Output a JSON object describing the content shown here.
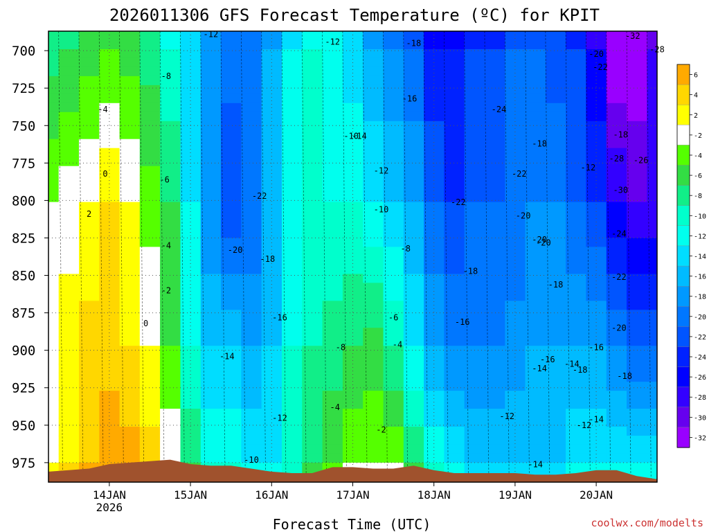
{
  "title": "2026011306 GFS Forecast Temperature (ºC) for KPIT",
  "credit": "coolwx.com/modelts",
  "chart_data": {
    "type": "heatmap",
    "title": "2026011306 GFS Forecast Temperature (ºC) for KPIT",
    "xlabel": "Forecast Time (UTC)",
    "ylabel": "",
    "x_range_days": [
      13.25,
      20.75
    ],
    "y_range_hpa": [
      687,
      988
    ],
    "x_ticks": [
      {
        "day": 14,
        "label": "14JAN",
        "sublabel": "2026"
      },
      {
        "day": 15,
        "label": "15JAN"
      },
      {
        "day": 16,
        "label": "16JAN"
      },
      {
        "day": 17,
        "label": "17JAN"
      },
      {
        "day": 18,
        "label": "18JAN"
      },
      {
        "day": 19,
        "label": "19JAN"
      },
      {
        "day": 20,
        "label": "20JAN"
      }
    ],
    "y_ticks": [
      700,
      725,
      750,
      775,
      800,
      825,
      850,
      875,
      900,
      925,
      950,
      975
    ],
    "grid": true,
    "colorbar": {
      "placement": "right",
      "levels": [
        6,
        4,
        2,
        -2,
        -4,
        -6,
        -8,
        -10,
        -12,
        -14,
        -16,
        -18,
        -20,
        -22,
        -24,
        -26,
        -28,
        -30,
        -32
      ],
      "colors": [
        "#ffaa00",
        "#ffd700",
        "#ffff00",
        "#ffffff",
        "#55ff00",
        "#33dd44",
        "#11ee88",
        "#00ffcc",
        "#00ffee",
        "#00ddff",
        "#00bbff",
        "#0099ff",
        "#0077ff",
        "#0055ff",
        "#0022ff",
        "#0000ff",
        "#3300ff",
        "#6600ee",
        "#9900ff"
      ]
    },
    "time_columns": [
      13.25,
      13.5,
      13.75,
      14,
      14.25,
      14.5,
      14.75,
      15,
      15.25,
      15.5,
      15.75,
      16,
      16.25,
      16.5,
      16.75,
      17,
      17.25,
      17.5,
      17.75,
      18,
      18.25,
      18.5,
      18.75,
      19,
      19.25,
      19.5,
      19.75,
      20,
      20.25,
      20.5,
      20.75
    ],
    "temperature_at_700hPa": [
      -7,
      -6,
      -5,
      -4,
      -5,
      -7,
      -10,
      -13,
      -17,
      -19,
      -19,
      -16,
      -12,
      -10,
      -11,
      -13,
      -16,
      -18,
      -20,
      -24,
      -24,
      -22,
      -22,
      -20,
      -20,
      -21,
      -22,
      -26,
      -32,
      -32,
      -28
    ],
    "temperature_at_800hPa": [
      -2,
      -1,
      0,
      2,
      0,
      -3,
      -6,
      -12,
      -18,
      -22,
      -20,
      -16,
      -12,
      -10,
      -10,
      -10,
      -12,
      -14,
      -16,
      -20,
      -22,
      -20,
      -20,
      -20,
      -18,
      -18,
      -20,
      -22,
      -26,
      -28,
      -28
    ],
    "temperature_at_900hPa": [
      -1,
      1,
      3,
      3,
      2,
      0,
      -4,
      -10,
      -14,
      -14,
      -16,
      -14,
      -10,
      -8,
      -7,
      -6,
      -5,
      -8,
      -12,
      -16,
      -18,
      -18,
      -18,
      -17,
      -16,
      -16,
      -16,
      -16,
      -18,
      -20,
      -20
    ],
    "temperature_at_975hPa": [
      0,
      2,
      4,
      6,
      5,
      3,
      0,
      -6,
      -10,
      -10,
      -12,
      -12,
      -10,
      -6,
      -4,
      -2,
      -2,
      -2,
      -6,
      -10,
      -12,
      -14,
      -14,
      -14,
      -14,
      -14,
      -12,
      -12,
      -12,
      -12,
      -12
    ],
    "contour_labels": [
      "-12",
      "-8",
      "-4",
      "-6",
      "0",
      "2",
      "-4",
      "-2",
      "0",
      "-22",
      "-20",
      "-18",
      "-16",
      "-14",
      "-12",
      "-10",
      "-12",
      "-18",
      "-16",
      "-10",
      "-14",
      "-12",
      "-10",
      "-8",
      "-6",
      "-4",
      "-8",
      "-4",
      "-2",
      "-24",
      "-22",
      "-20",
      "-18",
      "-16",
      "-14",
      "-12",
      "-18",
      "-22",
      "-20",
      "-20",
      "-18",
      "-16",
      "-18",
      "-14",
      "-12",
      "-14",
      "-20",
      "-22",
      "-18",
      "-28",
      "-26",
      "-30",
      "-24",
      "-22",
      "-20",
      "-18",
      "-16",
      "-14",
      "-12",
      "-32",
      "-28"
    ]
  }
}
